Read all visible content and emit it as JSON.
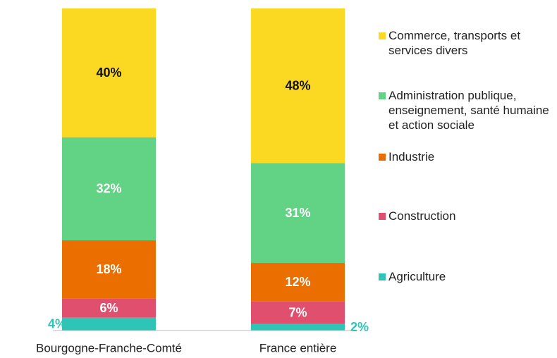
{
  "chart_data": {
    "type": "stacked_bar",
    "categories": [
      "Bourgogne-Franche-Comté",
      "France entière"
    ],
    "ylim": [
      0,
      100
    ],
    "series": [
      {
        "name": "Agriculture",
        "color": "#2ec4b6",
        "values": [
          4,
          2
        ],
        "value_labels": [
          "4%",
          "2%"
        ]
      },
      {
        "name": "Construction",
        "color": "#e0506e",
        "values": [
          6,
          7
        ],
        "value_labels": [
          "6%",
          "7%"
        ]
      },
      {
        "name": "Industrie",
        "color": "#eb6e00",
        "values": [
          18,
          12
        ],
        "value_labels": [
          "18%",
          "12%"
        ]
      },
      {
        "name": "Administration publique, enseignement, santé humaine et action sociale",
        "color": "#62d284",
        "values": [
          32,
          31
        ],
        "value_labels": [
          "32%",
          "31%"
        ]
      },
      {
        "name": "Commerce, transports et services divers",
        "color": "#fbd922",
        "values": [
          40,
          48
        ],
        "value_labels": [
          "40%",
          "48%"
        ]
      }
    ]
  }
}
